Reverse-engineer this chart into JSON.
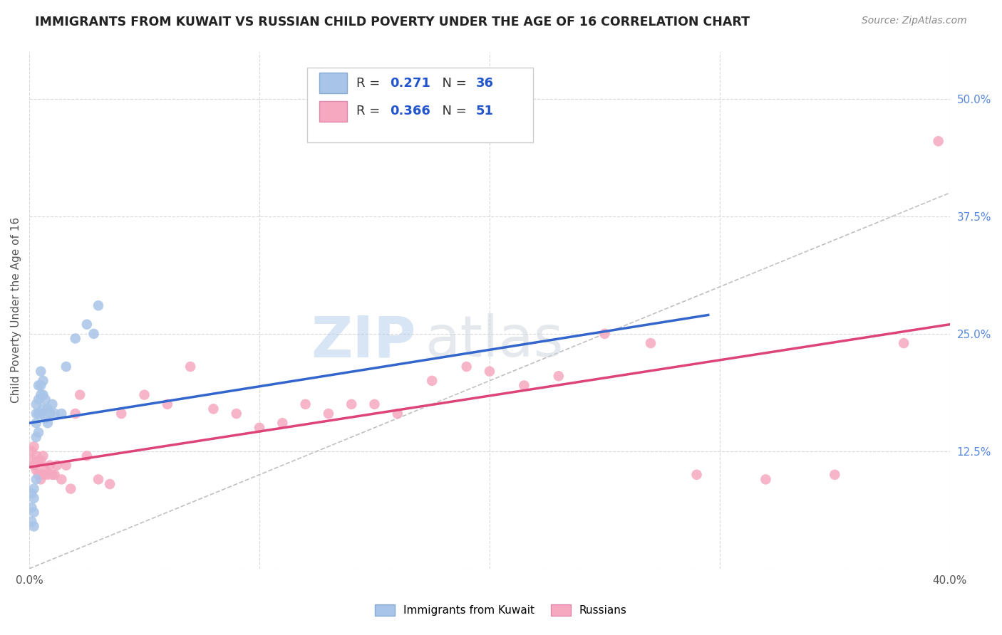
{
  "title": "IMMIGRANTS FROM KUWAIT VS RUSSIAN CHILD POVERTY UNDER THE AGE OF 16 CORRELATION CHART",
  "source": "Source: ZipAtlas.com",
  "ylabel": "Child Poverty Under the Age of 16",
  "xlim": [
    0.0,
    0.4
  ],
  "ylim": [
    0.0,
    0.55
  ],
  "xticks": [
    0.0,
    0.1,
    0.2,
    0.3,
    0.4
  ],
  "xticklabels": [
    "0.0%",
    "",
    "",
    "",
    "40.0%"
  ],
  "yticks": [
    0.0,
    0.125,
    0.25,
    0.375,
    0.5
  ],
  "yticklabels": [
    "",
    "12.5%",
    "25.0%",
    "37.5%",
    "50.0%"
  ],
  "blue_R": 0.271,
  "blue_N": 36,
  "pink_R": 0.366,
  "pink_N": 51,
  "blue_label": "Immigrants from Kuwait",
  "pink_label": "Russians",
  "background_color": "#ffffff",
  "grid_color": "#d8d8d8",
  "watermark": "ZIPatlas",
  "blue_scatter_color": "#a8c4e8",
  "pink_scatter_color": "#f5a8c0",
  "blue_line_color": "#3366cc",
  "pink_line_color": "#dd4477",
  "ref_line_color": "#c0c0c0",
  "blue_x": [
    0.001,
    0.001,
    0.001,
    0.002,
    0.002,
    0.002,
    0.002,
    0.003,
    0.003,
    0.003,
    0.003,
    0.003,
    0.004,
    0.004,
    0.004,
    0.004,
    0.005,
    0.005,
    0.005,
    0.005,
    0.006,
    0.006,
    0.006,
    0.007,
    0.007,
    0.008,
    0.008,
    0.009,
    0.01,
    0.011,
    0.014,
    0.016,
    0.02,
    0.025,
    0.028,
    0.03
  ],
  "blue_y": [
    0.05,
    0.065,
    0.08,
    0.045,
    0.06,
    0.075,
    0.085,
    0.095,
    0.14,
    0.155,
    0.165,
    0.175,
    0.145,
    0.165,
    0.18,
    0.195,
    0.165,
    0.185,
    0.195,
    0.21,
    0.17,
    0.185,
    0.2,
    0.16,
    0.18,
    0.155,
    0.17,
    0.165,
    0.175,
    0.165,
    0.165,
    0.215,
    0.245,
    0.26,
    0.25,
    0.28
  ],
  "pink_x": [
    0.001,
    0.001,
    0.002,
    0.002,
    0.003,
    0.003,
    0.004,
    0.004,
    0.005,
    0.005,
    0.006,
    0.006,
    0.007,
    0.008,
    0.009,
    0.01,
    0.011,
    0.012,
    0.014,
    0.016,
    0.018,
    0.02,
    0.022,
    0.025,
    0.03,
    0.035,
    0.04,
    0.05,
    0.06,
    0.07,
    0.08,
    0.09,
    0.1,
    0.11,
    0.12,
    0.13,
    0.14,
    0.15,
    0.16,
    0.175,
    0.19,
    0.2,
    0.215,
    0.23,
    0.25,
    0.27,
    0.29,
    0.32,
    0.35,
    0.38,
    0.395
  ],
  "pink_y": [
    0.115,
    0.125,
    0.11,
    0.13,
    0.105,
    0.12,
    0.1,
    0.115,
    0.095,
    0.115,
    0.1,
    0.12,
    0.105,
    0.1,
    0.11,
    0.1,
    0.1,
    0.11,
    0.095,
    0.11,
    0.085,
    0.165,
    0.185,
    0.12,
    0.095,
    0.09,
    0.165,
    0.185,
    0.175,
    0.215,
    0.17,
    0.165,
    0.15,
    0.155,
    0.175,
    0.165,
    0.175,
    0.175,
    0.165,
    0.2,
    0.215,
    0.21,
    0.195,
    0.205,
    0.25,
    0.24,
    0.1,
    0.095,
    0.1,
    0.24,
    0.455
  ],
  "blue_line_start_x": 0.0,
  "blue_line_start_y": 0.155,
  "blue_line_end_x": 0.295,
  "blue_line_end_y": 0.27,
  "pink_line_start_x": 0.0,
  "pink_line_start_y": 0.108,
  "pink_line_end_x": 0.4,
  "pink_line_end_y": 0.26
}
